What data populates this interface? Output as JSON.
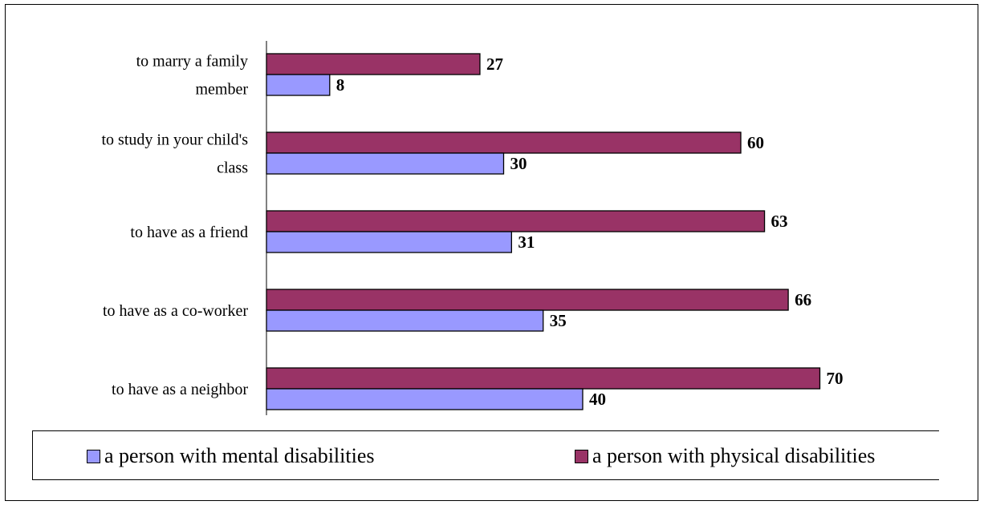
{
  "chart_data": {
    "type": "bar",
    "orientation": "horizontal",
    "categories": [
      [
        "to marry a family",
        "member"
      ],
      [
        "to study in your child's",
        "class"
      ],
      [
        "to have as a friend"
      ],
      [
        "to have as a co-worker"
      ],
      [
        "to have as a neighbor"
      ]
    ],
    "series": [
      {
        "name": "a person with physical disabilities",
        "color": "#993366",
        "values": [
          27,
          60,
          63,
          66,
          70
        ]
      },
      {
        "name": "a person with mental disabilities",
        "color": "#9999ff",
        "values": [
          8,
          30,
          31,
          35,
          40
        ]
      }
    ],
    "xlim": [
      0,
      100
    ],
    "grid": false,
    "legend": "bottom"
  },
  "legend": {
    "mental_label": "a person with mental disabilities",
    "physical_label": "a person with physical disabilities",
    "mental_color": "#9999ff",
    "physical_color": "#993366"
  }
}
